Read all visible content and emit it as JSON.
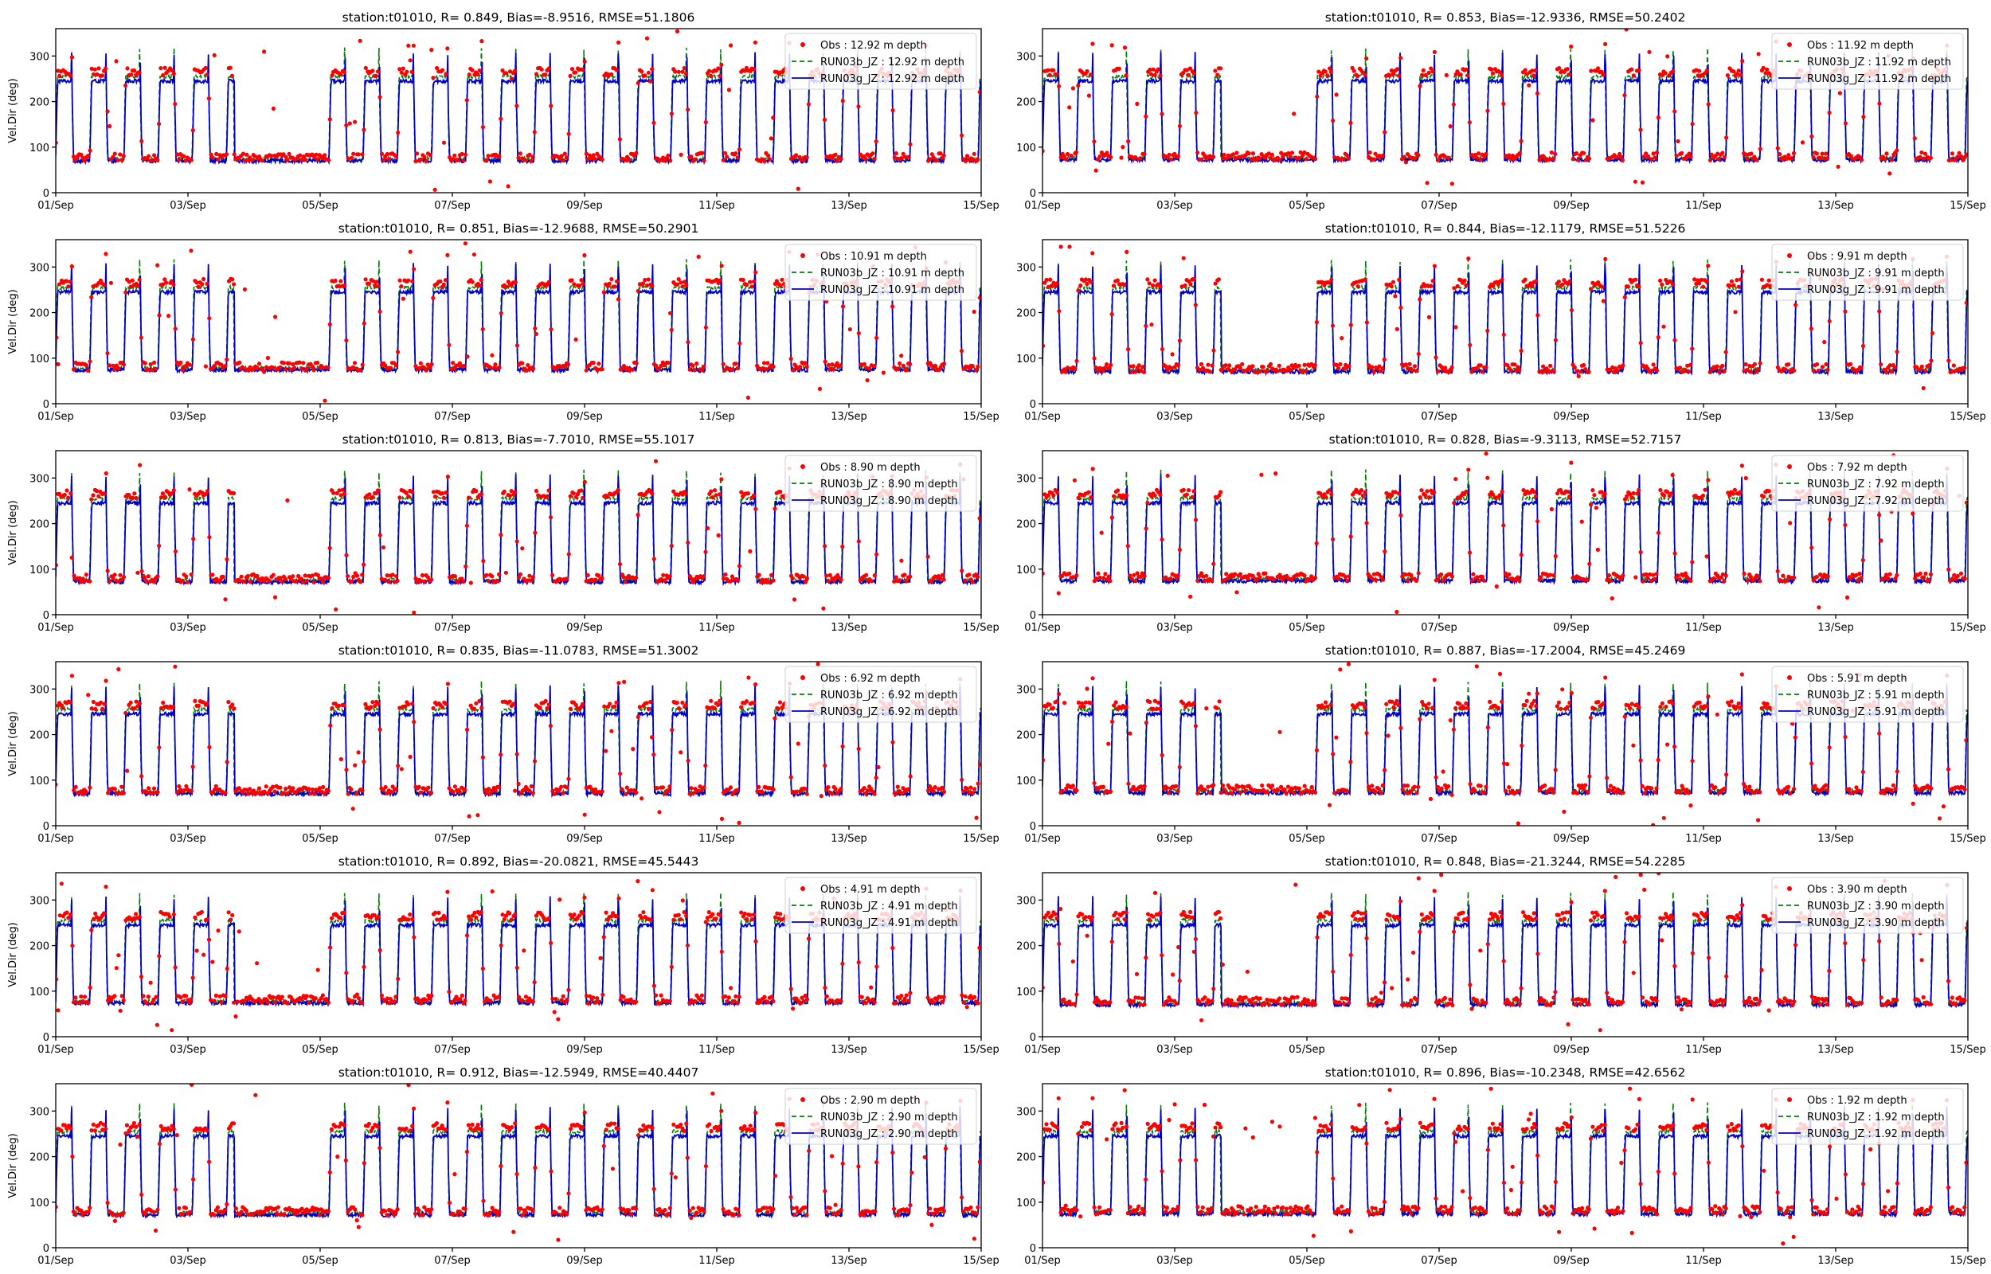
{
  "figure": {
    "background": "#ffffff"
  },
  "styles": {
    "obs_color": "#ff0000",
    "run03b_color": "#008000",
    "run03g_color": "#0000cc"
  },
  "shared_axes": {
    "ylabel": "Vel.Dir (deg)",
    "x_tick_labels": [
      "01/Sep",
      "03/Sep",
      "05/Sep",
      "07/Sep",
      "09/Sep",
      "11/Sep",
      "13/Sep",
      "15/Sep"
    ],
    "y_tick_labels": [
      "0",
      "100",
      "200",
      "300"
    ]
  },
  "chart_data": [
    {
      "type": "line",
      "title": "station:t01010, R= 0.849, Bias=-8.9516, RMSE=51.1806",
      "xlabel": "",
      "ylabel": "Vel.Dir (deg)",
      "xlim": [
        "2000-09-01",
        "2000-09-15"
      ],
      "ylim": [
        0,
        360
      ],
      "y_ticks": [
        0,
        100,
        200,
        300
      ],
      "legend": "upper right",
      "grid": false,
      "depth_m": 12.92,
      "series": [
        {
          "name": "Obs : 12.92 m depth",
          "style": "markers",
          "color": "#ff0000"
        },
        {
          "name": "RUN03b_JZ : 12.92 m depth",
          "style": "dashed",
          "color": "#008000"
        },
        {
          "name": "RUN03g_JZ : 12.92 m depth",
          "style": "solid",
          "color": "#0000cc"
        }
      ]
    },
    {
      "type": "line",
      "title": "station:t01010, R= 0.853, Bias=-12.9336, RMSE=50.2402",
      "xlabel": "",
      "ylabel": "",
      "xlim": [
        "2000-09-01",
        "2000-09-15"
      ],
      "ylim": [
        0,
        360
      ],
      "y_ticks": [
        0,
        100,
        200,
        300
      ],
      "legend": "upper right",
      "grid": false,
      "depth_m": 11.92,
      "series": [
        {
          "name": "Obs : 11.92 m depth",
          "style": "markers",
          "color": "#ff0000"
        },
        {
          "name": "RUN03b_JZ : 11.92 m depth",
          "style": "dashed",
          "color": "#008000"
        },
        {
          "name": "RUN03g_JZ : 11.92 m depth",
          "style": "solid",
          "color": "#0000cc"
        }
      ]
    },
    {
      "type": "line",
      "title": "station:t01010, R= 0.851, Bias=-12.9688, RMSE=50.2901",
      "xlabel": "",
      "ylabel": "Vel.Dir (deg)",
      "xlim": [
        "2000-09-01",
        "2000-09-15"
      ],
      "ylim": [
        0,
        360
      ],
      "y_ticks": [
        0,
        100,
        200,
        300
      ],
      "legend": "upper right",
      "grid": false,
      "depth_m": 10.91,
      "series": [
        {
          "name": "Obs : 10.91 m depth",
          "style": "markers",
          "color": "#ff0000"
        },
        {
          "name": "RUN03b_JZ : 10.91 m depth",
          "style": "dashed",
          "color": "#008000"
        },
        {
          "name": "RUN03g_JZ : 10.91 m depth",
          "style": "solid",
          "color": "#0000cc"
        }
      ]
    },
    {
      "type": "line",
      "title": "station:t01010, R= 0.844, Bias=-12.1179, RMSE=51.5226",
      "xlabel": "",
      "ylabel": "",
      "xlim": [
        "2000-09-01",
        "2000-09-15"
      ],
      "ylim": [
        0,
        360
      ],
      "y_ticks": [
        0,
        100,
        200,
        300
      ],
      "legend": "upper right",
      "grid": false,
      "depth_m": 9.91,
      "series": [
        {
          "name": "Obs : 9.91 m depth",
          "style": "markers",
          "color": "#ff0000"
        },
        {
          "name": "RUN03b_JZ : 9.91 m depth",
          "style": "dashed",
          "color": "#008000"
        },
        {
          "name": "RUN03g_JZ : 9.91 m depth",
          "style": "solid",
          "color": "#0000cc"
        }
      ]
    },
    {
      "type": "line",
      "title": "station:t01010, R= 0.813, Bias=-7.7010, RMSE=55.1017",
      "xlabel": "",
      "ylabel": "Vel.Dir (deg)",
      "xlim": [
        "2000-09-01",
        "2000-09-15"
      ],
      "ylim": [
        0,
        360
      ],
      "y_ticks": [
        0,
        100,
        200,
        300
      ],
      "legend": "upper right",
      "grid": false,
      "depth_m": 8.9,
      "series": [
        {
          "name": "Obs : 8.90 m depth",
          "style": "markers",
          "color": "#ff0000"
        },
        {
          "name": "RUN03b_JZ : 8.90 m depth",
          "style": "dashed",
          "color": "#008000"
        },
        {
          "name": "RUN03g_JZ : 8.90 m depth",
          "style": "solid",
          "color": "#0000cc"
        }
      ]
    },
    {
      "type": "line",
      "title": "station:t01010, R= 0.828, Bias=-9.3113, RMSE=52.7157",
      "xlabel": "",
      "ylabel": "",
      "xlim": [
        "2000-09-01",
        "2000-09-15"
      ],
      "ylim": [
        0,
        360
      ],
      "y_ticks": [
        0,
        100,
        200,
        300
      ],
      "legend": "upper right",
      "grid": false,
      "depth_m": 7.92,
      "series": [
        {
          "name": "Obs : 7.92 m depth",
          "style": "markers",
          "color": "#ff0000"
        },
        {
          "name": "RUN03b_JZ : 7.92 m depth",
          "style": "dashed",
          "color": "#008000"
        },
        {
          "name": "RUN03g_JZ : 7.92 m depth",
          "style": "solid",
          "color": "#0000cc"
        }
      ]
    },
    {
      "type": "line",
      "title": "station:t01010, R= 0.835, Bias=-11.0783, RMSE=51.3002",
      "xlabel": "",
      "ylabel": "Vel.Dir (deg)",
      "xlim": [
        "2000-09-01",
        "2000-09-15"
      ],
      "ylim": [
        0,
        360
      ],
      "y_ticks": [
        0,
        100,
        200,
        300
      ],
      "legend": "upper right",
      "grid": false,
      "depth_m": 6.92,
      "series": [
        {
          "name": "Obs : 6.92 m depth",
          "style": "markers",
          "color": "#ff0000"
        },
        {
          "name": "RUN03b_JZ : 6.92 m depth",
          "style": "dashed",
          "color": "#008000"
        },
        {
          "name": "RUN03g_JZ : 6.92 m depth",
          "style": "solid",
          "color": "#0000cc"
        }
      ]
    },
    {
      "type": "line",
      "title": "station:t01010, R= 0.887, Bias=-17.2004, RMSE=45.2469",
      "xlabel": "",
      "ylabel": "",
      "xlim": [
        "2000-09-01",
        "2000-09-15"
      ],
      "ylim": [
        0,
        360
      ],
      "y_ticks": [
        0,
        100,
        200,
        300
      ],
      "legend": "upper right",
      "grid": false,
      "depth_m": 5.91,
      "series": [
        {
          "name": "Obs : 5.91 m depth",
          "style": "markers",
          "color": "#ff0000"
        },
        {
          "name": "RUN03b_JZ : 5.91 m depth",
          "style": "dashed",
          "color": "#008000"
        },
        {
          "name": "RUN03g_JZ : 5.91 m depth",
          "style": "solid",
          "color": "#0000cc"
        }
      ]
    },
    {
      "type": "line",
      "title": "station:t01010, R= 0.892, Bias=-20.0821, RMSE=45.5443",
      "xlabel": "",
      "ylabel": "Vel.Dir (deg)",
      "xlim": [
        "2000-09-01",
        "2000-09-15"
      ],
      "ylim": [
        0,
        360
      ],
      "y_ticks": [
        0,
        100,
        200,
        300
      ],
      "legend": "upper right",
      "grid": false,
      "depth_m": 4.91,
      "series": [
        {
          "name": "Obs : 4.91 m depth",
          "style": "markers",
          "color": "#ff0000"
        },
        {
          "name": "RUN03b_JZ : 4.91 m depth",
          "style": "dashed",
          "color": "#008000"
        },
        {
          "name": "RUN03g_JZ : 4.91 m depth",
          "style": "solid",
          "color": "#0000cc"
        }
      ]
    },
    {
      "type": "line",
      "title": "station:t01010, R= 0.848, Bias=-21.3244, RMSE=54.2285",
      "xlabel": "",
      "ylabel": "",
      "xlim": [
        "2000-09-01",
        "2000-09-15"
      ],
      "ylim": [
        0,
        360
      ],
      "y_ticks": [
        0,
        100,
        200,
        300
      ],
      "legend": "upper right",
      "grid": false,
      "depth_m": 3.9,
      "series": [
        {
          "name": "Obs : 3.90 m depth",
          "style": "markers",
          "color": "#ff0000"
        },
        {
          "name": "RUN03b_JZ : 3.90 m depth",
          "style": "dashed",
          "color": "#008000"
        },
        {
          "name": "RUN03g_JZ : 3.90 m depth",
          "style": "solid",
          "color": "#0000cc"
        }
      ]
    },
    {
      "type": "line",
      "title": "station:t01010, R= 0.912, Bias=-12.5949, RMSE=40.4407",
      "xlabel": "",
      "ylabel": "Vel.Dir (deg)",
      "xlim": [
        "2000-09-01",
        "2000-09-15"
      ],
      "ylim": [
        0,
        360
      ],
      "y_ticks": [
        0,
        100,
        200,
        300
      ],
      "legend": "upper right",
      "grid": false,
      "depth_m": 2.9,
      "series": [
        {
          "name": "Obs : 2.90 m depth",
          "style": "markers",
          "color": "#ff0000"
        },
        {
          "name": "RUN03b_JZ : 2.90 m depth",
          "style": "dashed",
          "color": "#008000"
        },
        {
          "name": "RUN03g_JZ : 2.90 m depth",
          "style": "solid",
          "color": "#0000cc"
        }
      ]
    },
    {
      "type": "line",
      "title": "station:t01010, R= 0.896, Bias=-10.2348, RMSE=42.6562",
      "xlabel": "",
      "ylabel": "",
      "xlim": [
        "2000-09-01",
        "2000-09-15"
      ],
      "ylim": [
        0,
        360
      ],
      "y_ticks": [
        0,
        100,
        200,
        300
      ],
      "legend": "upper right",
      "grid": false,
      "depth_m": 1.92,
      "series": [
        {
          "name": "Obs : 1.92 m depth",
          "style": "markers",
          "color": "#ff0000"
        },
        {
          "name": "RUN03b_JZ : 1.92 m depth",
          "style": "dashed",
          "color": "#008000"
        },
        {
          "name": "RUN03g_JZ : 1.92 m depth",
          "style": "solid",
          "color": "#0000cc"
        }
      ]
    }
  ]
}
